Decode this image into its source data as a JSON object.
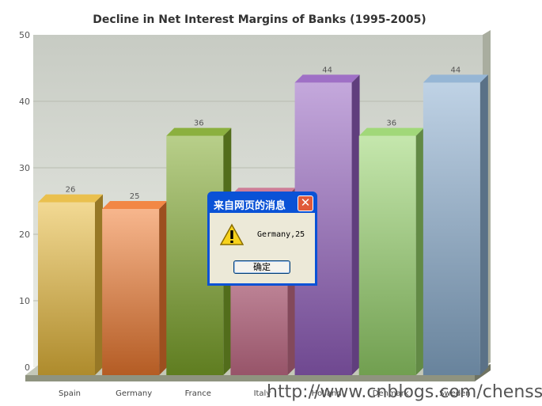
{
  "chart_data": {
    "type": "bar",
    "title": "Decline in Net Interest Margins of Banks (1995-2005)",
    "categories": [
      "Spain",
      "Germany",
      "France",
      "Italy",
      "Holland",
      "Denmark",
      "Sweden"
    ],
    "values": [
      26,
      25,
      36,
      27,
      44,
      36,
      44
    ],
    "value_labels": [
      "26",
      "25",
      "36",
      "",
      "44",
      "36",
      "44"
    ],
    "ylim": [
      0,
      50
    ],
    "yticks": [
      "0",
      "10",
      "20",
      "30",
      "40",
      "50"
    ],
    "grid": true,
    "colors": [
      "#e8b93a",
      "#f07a30",
      "#7ea72a",
      "#c9708c",
      "#9460c0",
      "#96d46a",
      "#8aaed0"
    ]
  },
  "dialog": {
    "title": "来自网页的消息",
    "close_glyph": "✕",
    "message": "Germany,25",
    "ok_label": "确定",
    "icon": "warning-icon"
  },
  "watermark": "http://www.cnblogs.com/chenssy/"
}
